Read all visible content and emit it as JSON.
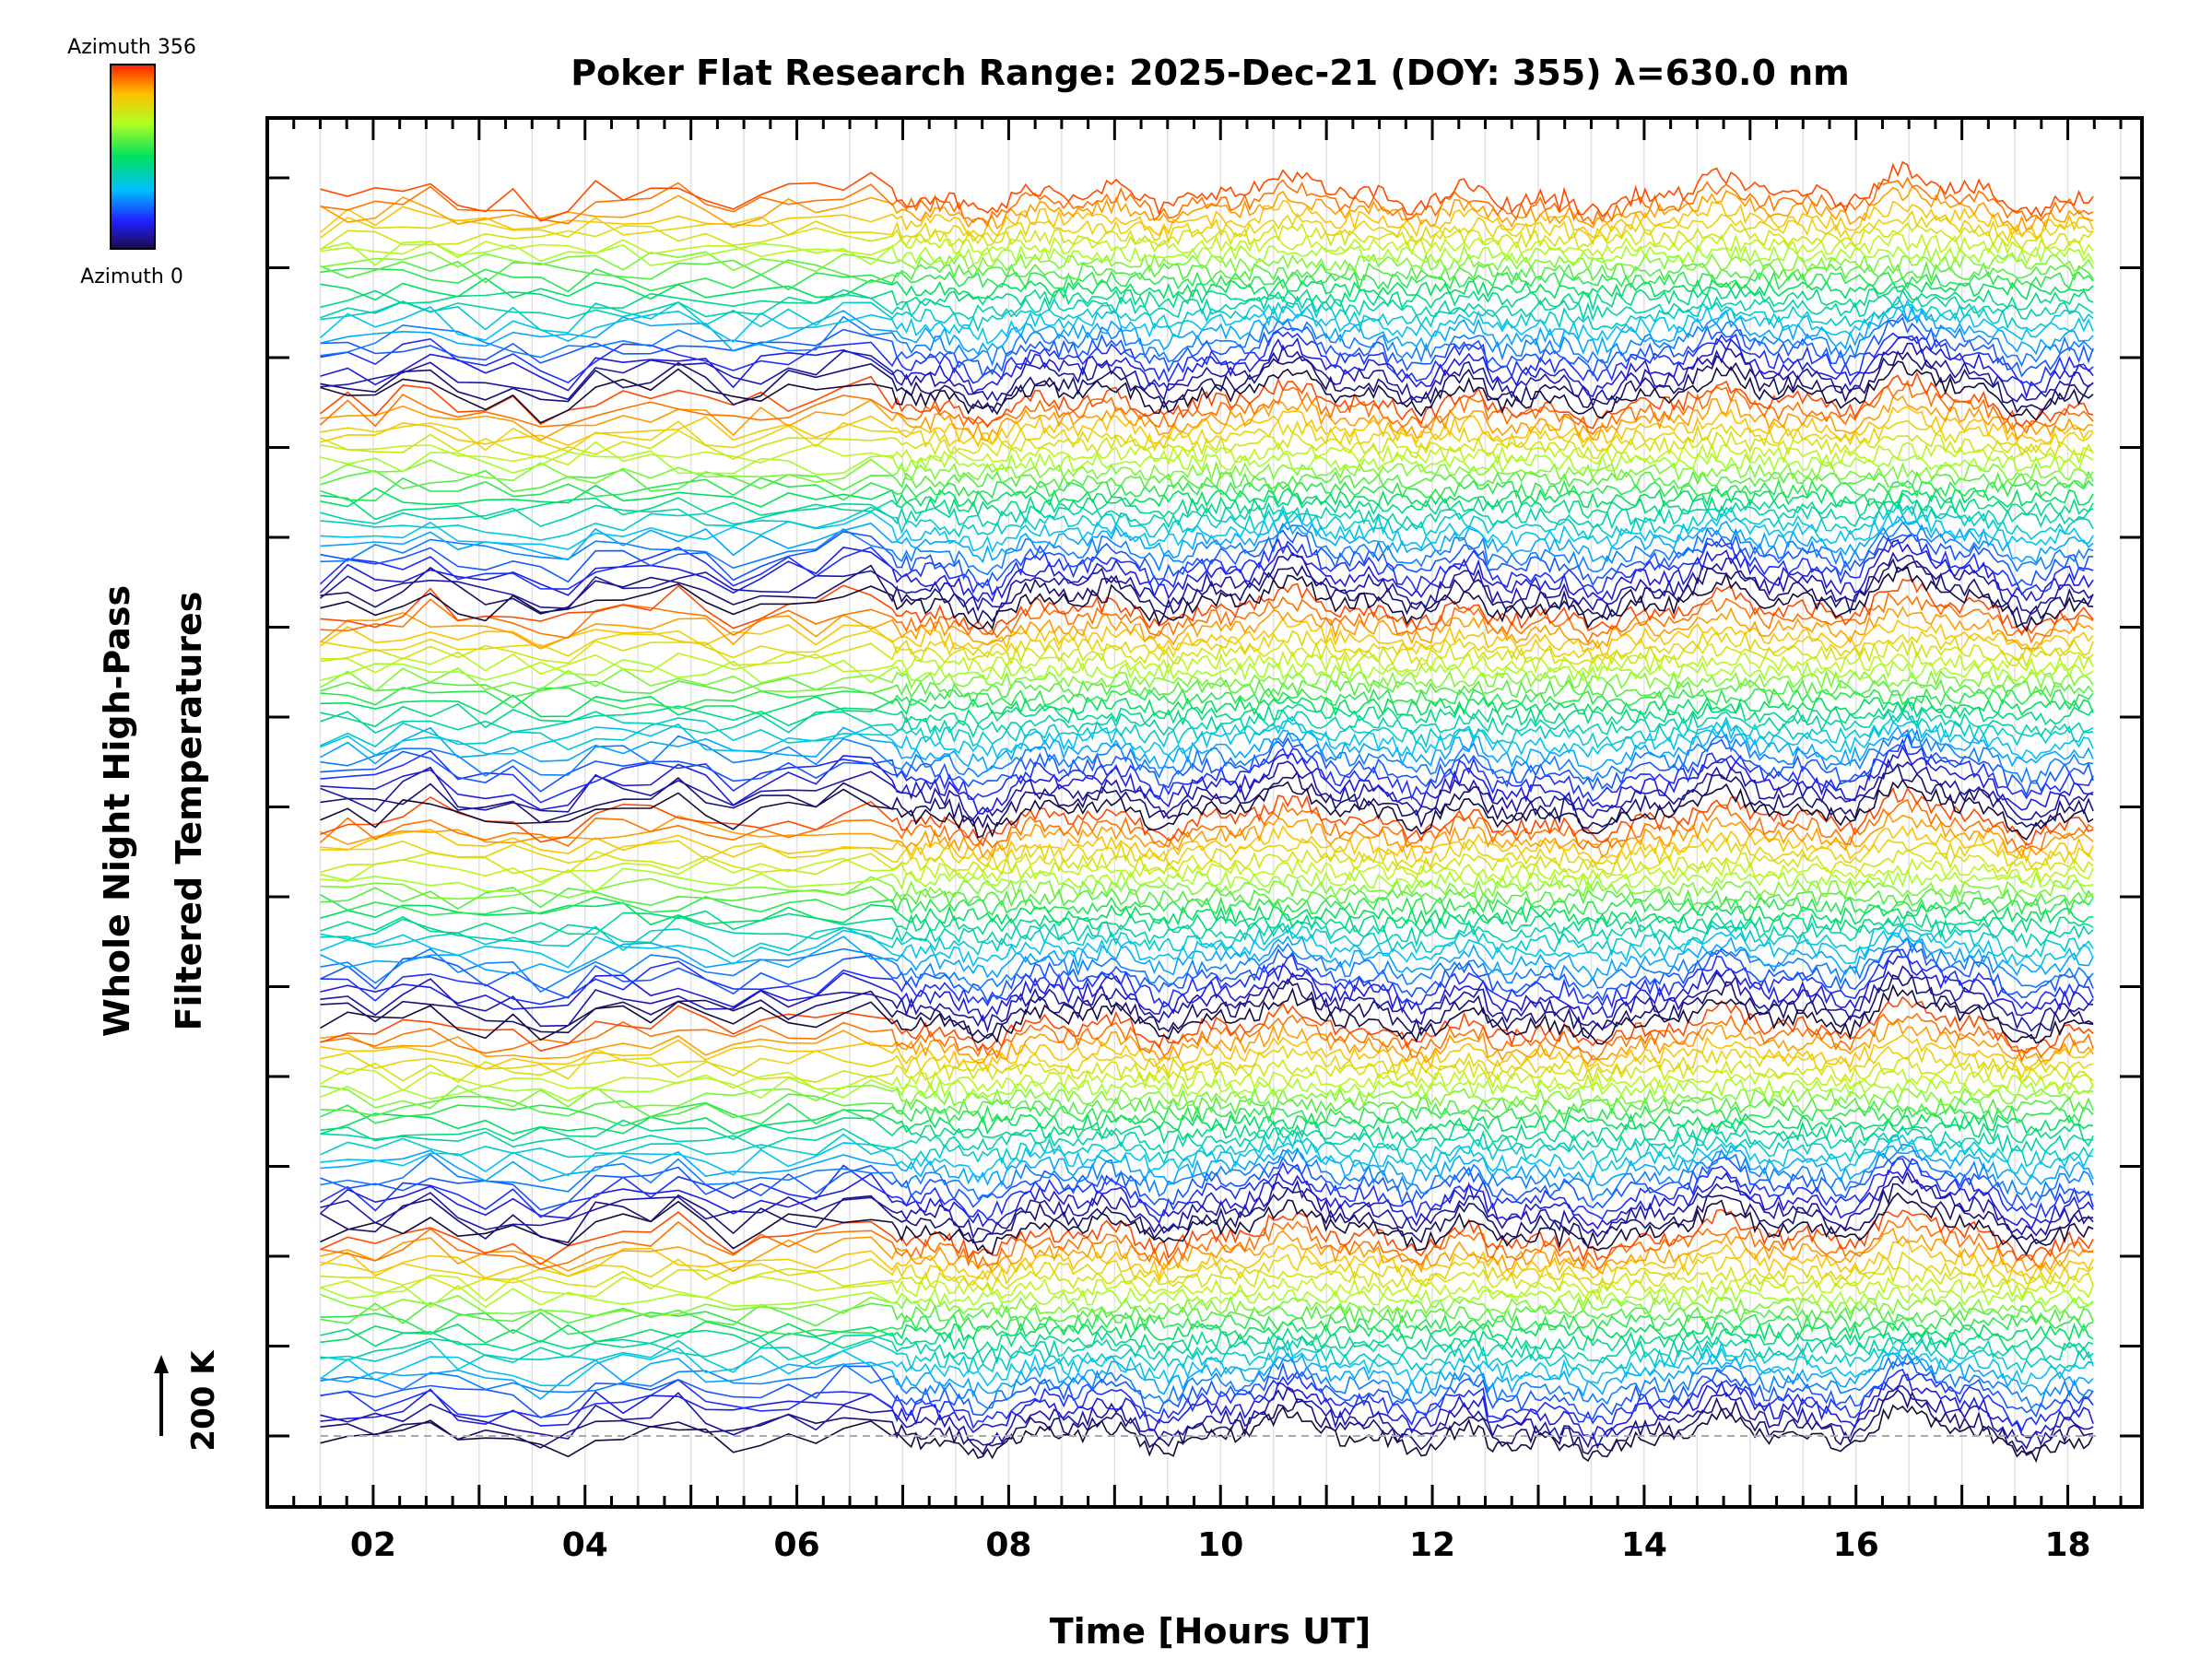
{
  "chart_data": {
    "type": "line",
    "title": "Poker Flat Research Range: 2025-Dec-21 (DOY: 355) λ=630.0 nm",
    "xlabel": "Time [Hours UT]",
    "ylabel": [
      "Whole Night High-Pass",
      "Filtered Temperatures"
    ],
    "xlim": [
      1.0,
      18.7
    ],
    "x_ticks": [
      "02",
      "04",
      "06",
      "08",
      "10",
      "12",
      "14",
      "16",
      "18"
    ],
    "x_tick_values": [
      2,
      4,
      6,
      8,
      10,
      12,
      14,
      16,
      18
    ],
    "y_ticks_count": 15,
    "scale_bar": {
      "label": "200 K",
      "kelvin": 200
    },
    "colorbar": {
      "top_label": "Azimuth 356",
      "bottom_label": "Azimuth 0",
      "min_azimuth": 0,
      "max_azimuth": 356,
      "colormap": "rainbow"
    },
    "series_layout": {
      "traces": 144,
      "time_start": 1.5,
      "time_end": 18.25,
      "sparse_until": 6.9,
      "azimuth_cycles": 6,
      "description": "stacked high-pass filtered temperature traces ordered by azimuth, offset vertically"
    },
    "grid": true,
    "baseline": "dashed"
  }
}
